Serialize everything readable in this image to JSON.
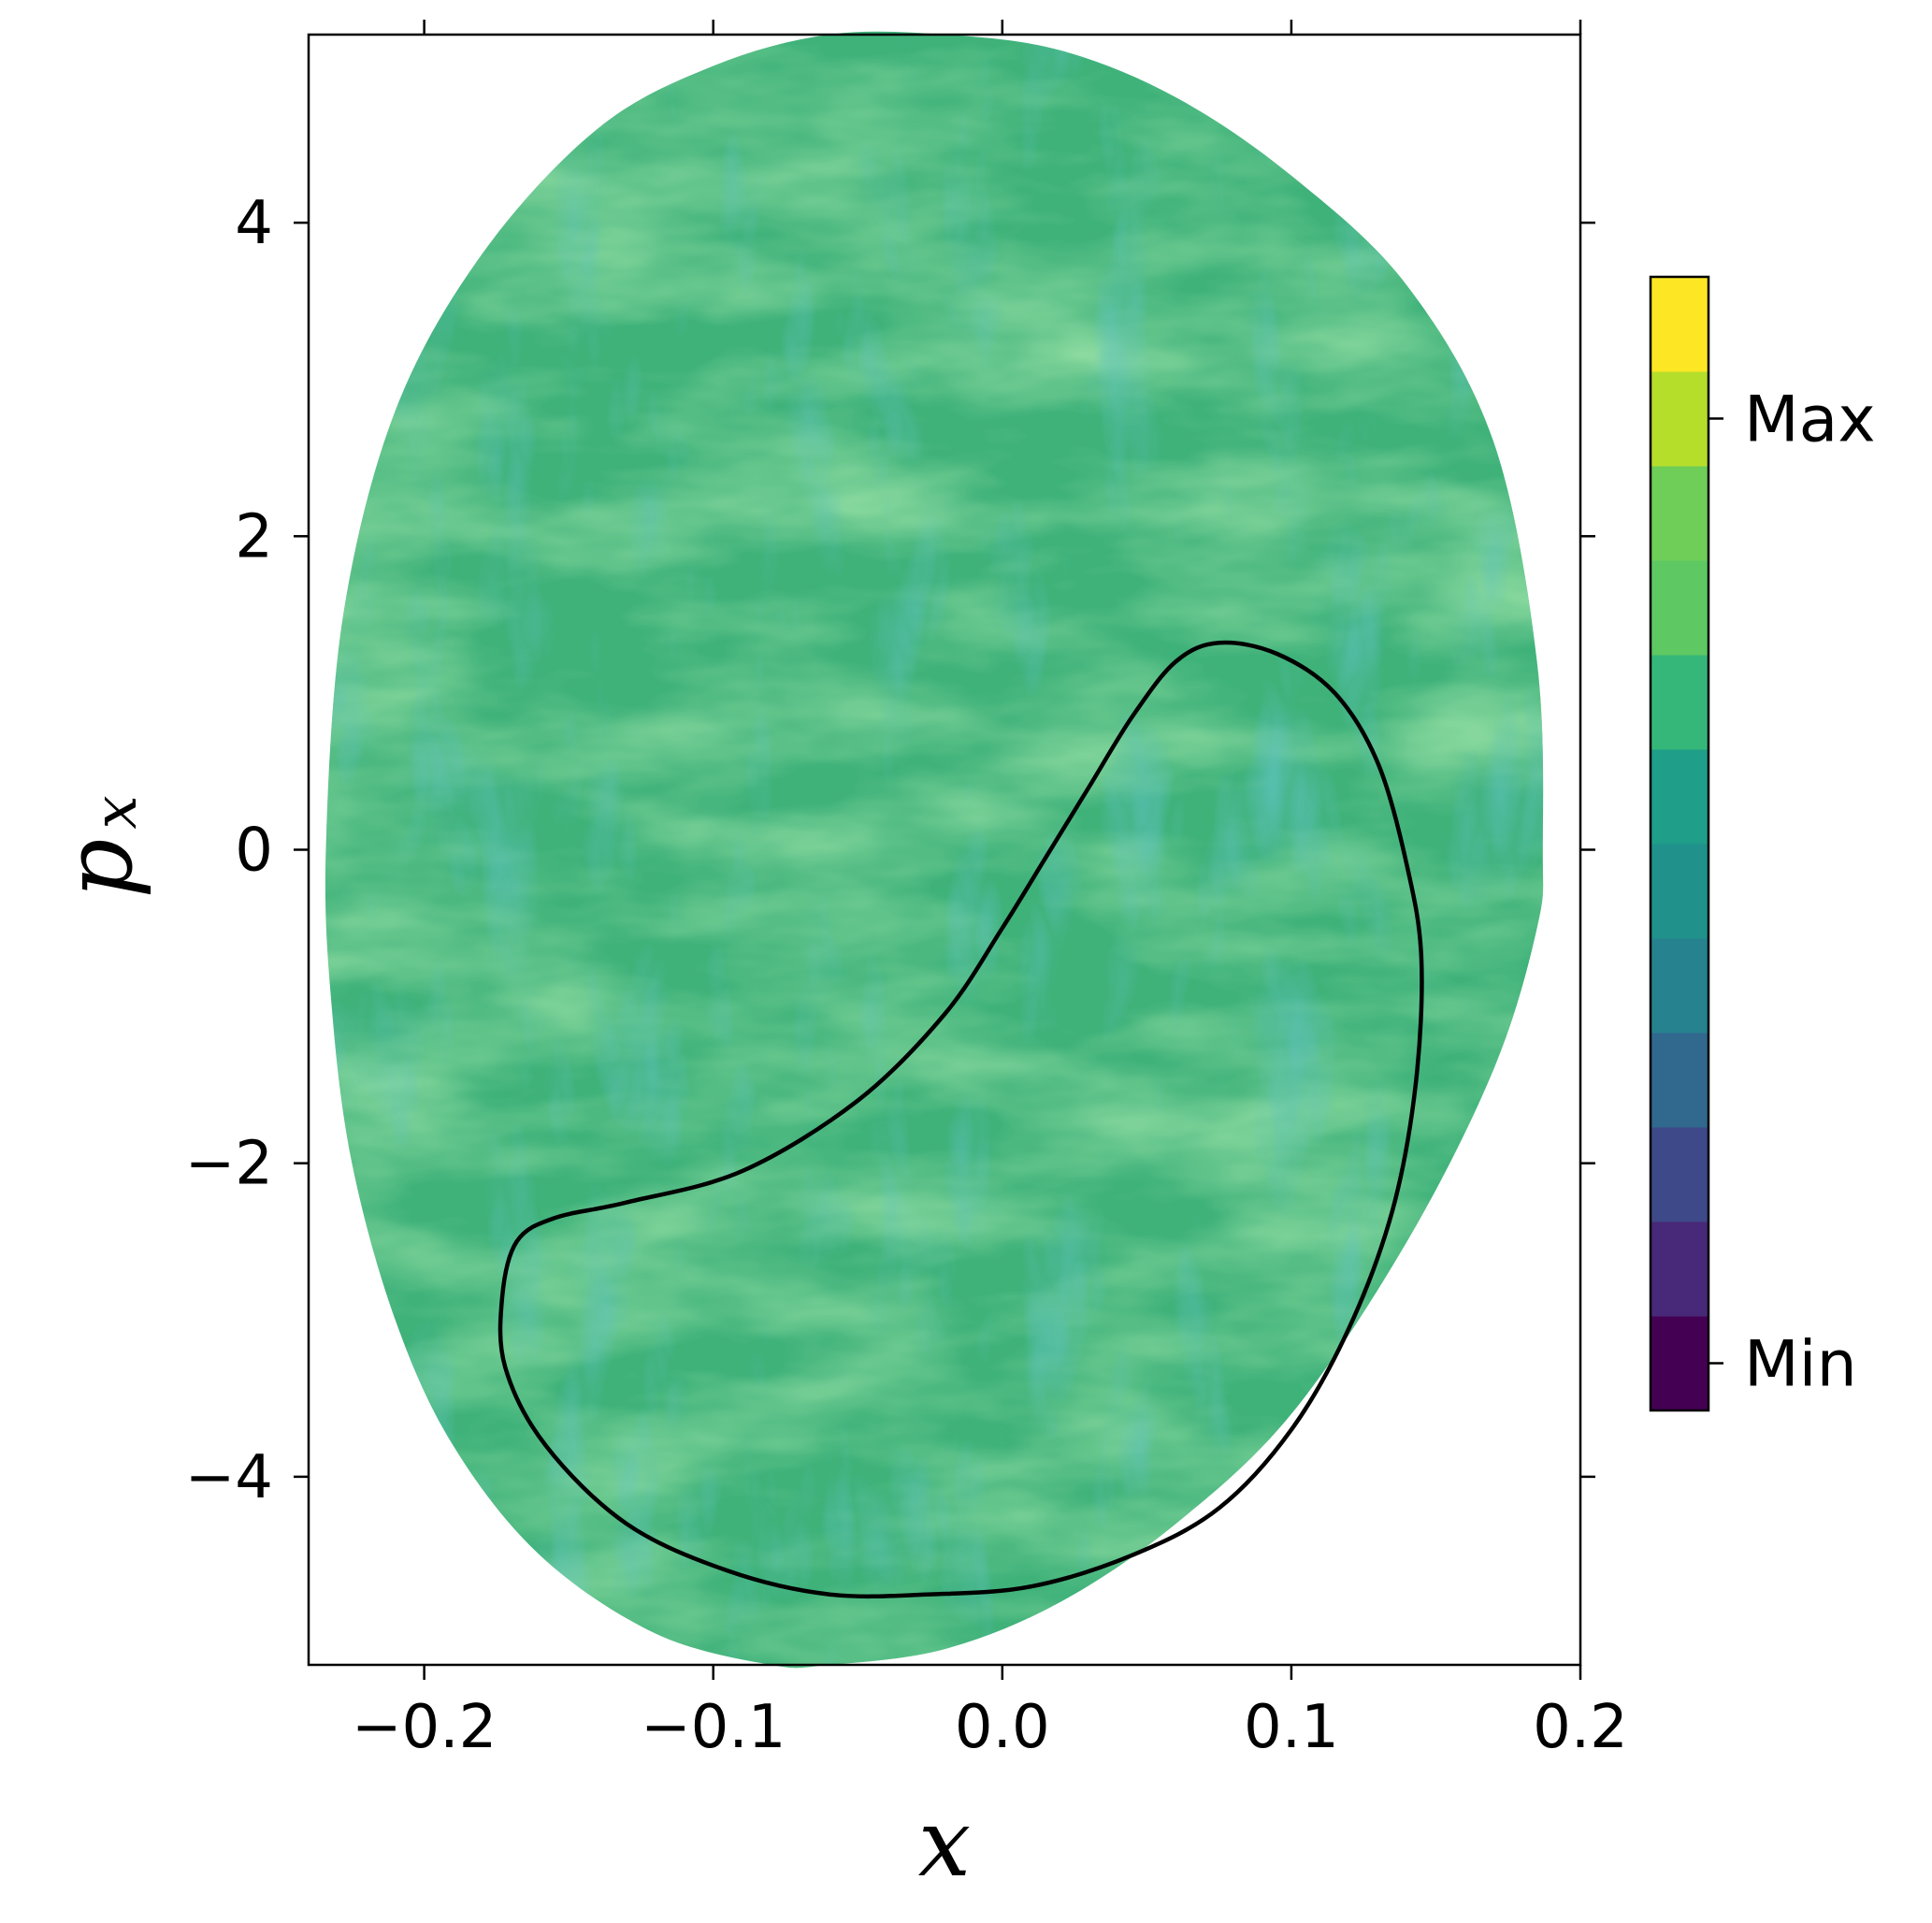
{
  "chart_data": {
    "type": "heatmap",
    "title": "",
    "xlabel": "x",
    "ylabel": "p",
    "ylabel_subscript": "x",
    "xlim": [
      -0.24,
      0.2
    ],
    "ylim": [
      -5.2,
      5.2
    ],
    "xticks": [
      -0.2,
      -0.1,
      0.0,
      0.1,
      0.2
    ],
    "xtick_labels": [
      "−0.2",
      "−0.1",
      "0.0",
      "0.1",
      "0.2"
    ],
    "yticks": [
      -4,
      -2,
      0,
      2,
      4
    ],
    "ytick_labels": [
      "−4",
      "−2",
      "0",
      "2",
      "4"
    ],
    "grid": false,
    "colormap": "viridis",
    "colorbar": {
      "levels": 12,
      "colors": [
        "#440154",
        "#482878",
        "#3e4989",
        "#31688e",
        "#26828e",
        "#1f9e89",
        "#35b779",
        "#6ece58",
        "#b5de2b",
        "#fde725",
        "#21918c",
        "#5ec962"
      ],
      "tick_labels": [
        "Min",
        "Max"
      ]
    },
    "region_boundary": {
      "x": [
        0.187,
        0.185,
        0.17,
        0.14,
        0.1,
        0.06,
        0.02,
        -0.02,
        -0.06,
        -0.1,
        -0.14,
        -0.18,
        -0.21,
        -0.228,
        -0.234,
        -0.232,
        -0.225,
        -0.21,
        -0.19,
        -0.16,
        -0.12,
        -0.08,
        -0.06,
        -0.02,
        0.02,
        0.06,
        0.1,
        0.14,
        0.17,
        0.185,
        0.187
      ],
      "y": [
        0.0,
        1.2,
        2.6,
        3.6,
        4.3,
        4.8,
        5.1,
        5.2,
        5.2,
        5.0,
        4.6,
        3.8,
        2.8,
        1.5,
        0.0,
        -1.0,
        -2.0,
        -3.0,
        -3.8,
        -4.5,
        -5.0,
        -5.2,
        -5.2,
        -5.1,
        -4.8,
        -4.3,
        -3.6,
        -2.5,
        -1.4,
        -0.5,
        0.0
      ]
    },
    "curve": {
      "x": [
        0.075,
        0.095,
        0.115,
        0.13,
        0.14,
        0.145,
        0.143,
        0.135,
        0.12,
        0.1,
        0.075,
        0.045,
        0.01,
        -0.025,
        -0.06,
        -0.095,
        -0.13,
        -0.158,
        -0.172,
        -0.173,
        -0.168,
        -0.155,
        -0.13,
        -0.09,
        -0.05,
        -0.02,
        0.0,
        0.015,
        0.03,
        0.045,
        0.06,
        0.075
      ],
      "y": [
        1.32,
        1.25,
        1.0,
        0.55,
        -0.1,
        -0.7,
        -1.5,
        -2.3,
        -3.05,
        -3.7,
        -4.2,
        -4.5,
        -4.7,
        -4.75,
        -4.75,
        -4.6,
        -4.3,
        -3.8,
        -3.3,
        -2.85,
        -2.5,
        -2.35,
        -2.25,
        -2.05,
        -1.6,
        -1.05,
        -0.5,
        -0.05,
        0.4,
        0.85,
        1.2,
        1.32
      ]
    }
  }
}
